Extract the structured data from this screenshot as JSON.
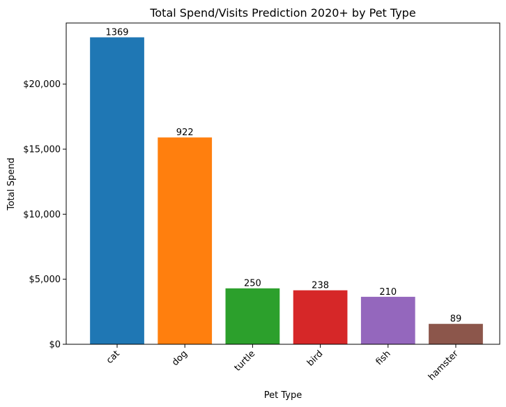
{
  "chart_data": {
    "type": "bar",
    "title": "Total Spend/Visits Prediction 2020+ by Pet Type",
    "xlabel": "Pet Type",
    "ylabel": "Total Spend",
    "categories": [
      "cat",
      "dog",
      "turtle",
      "bird",
      "fish",
      "hamster"
    ],
    "values": [
      23600,
      15900,
      4300,
      4150,
      3650,
      1570
    ],
    "data_labels": [
      "1369",
      "922",
      "250",
      "238",
      "210",
      "89"
    ],
    "colors": [
      "#1f77b4",
      "#ff7f0e",
      "#2ca02c",
      "#d62728",
      "#9467bd",
      "#8c564b"
    ],
    "ylim": [
      0,
      24700
    ],
    "yticks": [
      0,
      5000,
      10000,
      15000,
      20000
    ],
    "ytick_labels": [
      "$0",
      "$5,000",
      "$10,000",
      "$15,000",
      "$20,000"
    ],
    "grid": false,
    "legend": "none"
  }
}
